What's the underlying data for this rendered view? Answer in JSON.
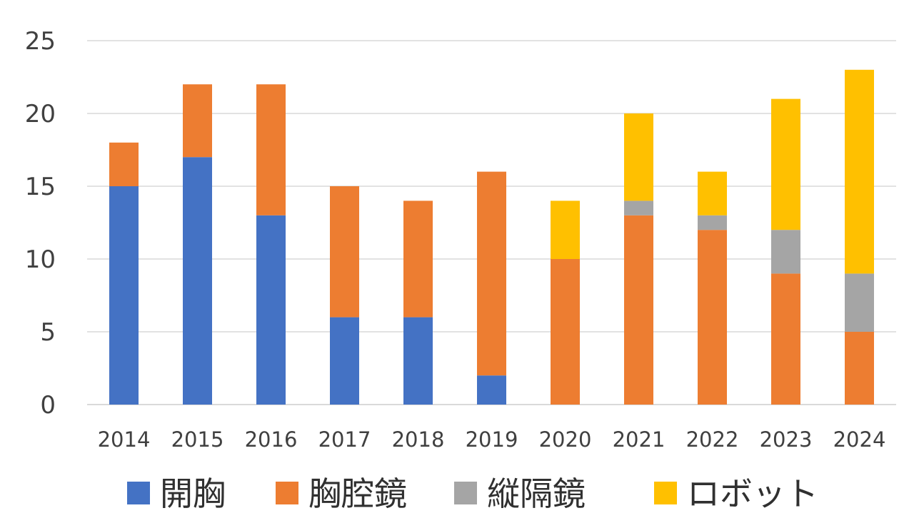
{
  "chart_data": {
    "type": "bar",
    "stacked": true,
    "title": "",
    "xlabel": "",
    "ylabel": "",
    "ylim": [
      0,
      25
    ],
    "yticks": [
      "0",
      "5",
      "10",
      "15",
      "20",
      "25"
    ],
    "grid": true,
    "legend_position": "bottom",
    "categories": [
      "2014",
      "2015",
      "2016",
      "2017",
      "2018",
      "2019",
      "2020",
      "2021",
      "2022",
      "2023",
      "2024"
    ],
    "series": [
      {
        "name": "開胸",
        "color": "#4472C4",
        "values": [
          15,
          17,
          13,
          6,
          6,
          2,
          0,
          0,
          0,
          0,
          0
        ]
      },
      {
        "name": "胸腔鏡",
        "color": "#ED7D31",
        "values": [
          3,
          5,
          9,
          9,
          8,
          14,
          10,
          13,
          12,
          9,
          5
        ]
      },
      {
        "name": "縦隔鏡",
        "color": "#A5A5A5",
        "values": [
          0,
          0,
          0,
          0,
          0,
          0,
          0,
          1,
          1,
          3,
          4
        ]
      },
      {
        "name": "ロボット",
        "color": "#FFC000",
        "values": [
          0,
          0,
          0,
          0,
          0,
          0,
          4,
          6,
          3,
          9,
          14
        ]
      }
    ]
  }
}
